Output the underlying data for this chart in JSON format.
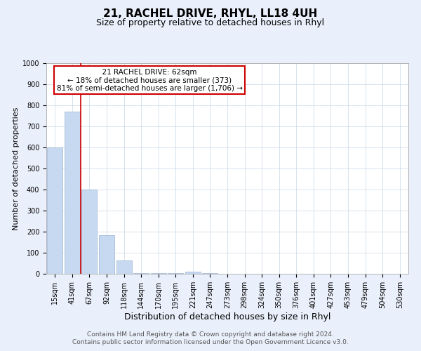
{
  "title": "21, RACHEL DRIVE, RHYL, LL18 4UH",
  "subtitle": "Size of property relative to detached houses in Rhyl",
  "xlabel": "Distribution of detached houses by size in Rhyl",
  "ylabel": "Number of detached properties",
  "bar_labels": [
    "15sqm",
    "41sqm",
    "67sqm",
    "92sqm",
    "118sqm",
    "144sqm",
    "170sqm",
    "195sqm",
    "221sqm",
    "247sqm",
    "273sqm",
    "298sqm",
    "324sqm",
    "350sqm",
    "376sqm",
    "401sqm",
    "427sqm",
    "453sqm",
    "479sqm",
    "504sqm",
    "530sqm"
  ],
  "bar_values": [
    600,
    770,
    400,
    185,
    65,
    5,
    5,
    5,
    10,
    5,
    0,
    0,
    0,
    0,
    0,
    0,
    0,
    0,
    0,
    0,
    0
  ],
  "bar_color": "#c6d9f1",
  "bar_edge_color": "#9ab3d5",
  "ylim": [
    0,
    1000
  ],
  "yticks": [
    0,
    100,
    200,
    300,
    400,
    500,
    600,
    700,
    800,
    900,
    1000
  ],
  "vline_color": "#cc0000",
  "annotation_text": "  21 RACHEL DRIVE: 62sqm  \n← 18% of detached houses are smaller (373)\n81% of semi-detached houses are larger (1,706) →",
  "annotation_box_color": "#cc0000",
  "bg_color": "#eaf0fb",
  "plot_bg_color": "#ffffff",
  "grid_color": "#c8d8e8",
  "footer_text": "Contains HM Land Registry data © Crown copyright and database right 2024.\nContains public sector information licensed under the Open Government Licence v3.0.",
  "title_fontsize": 11,
  "subtitle_fontsize": 9,
  "xlabel_fontsize": 9,
  "ylabel_fontsize": 8,
  "tick_fontsize": 7,
  "annotation_fontsize": 7.5,
  "footer_fontsize": 6.5
}
